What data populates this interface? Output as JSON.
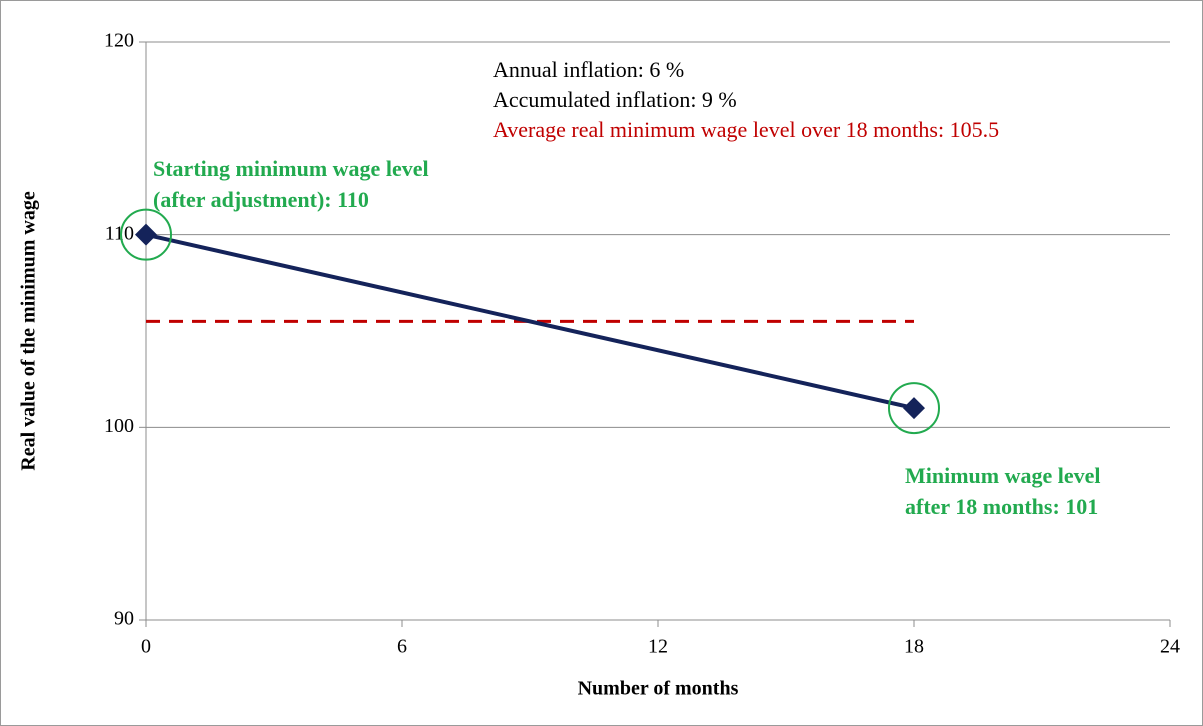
{
  "chart_data": {
    "type": "line",
    "x": [
      0,
      18
    ],
    "values": [
      110,
      101
    ],
    "color": "#14235a",
    "xlabel": "Number of months",
    "ylabel": "Real value of the minimum wage",
    "xlim": [
      0,
      24
    ],
    "xticks": [
      0,
      6,
      12,
      18,
      24
    ],
    "ylim": [
      90,
      120
    ],
    "yticks": [
      90,
      100,
      110,
      120
    ],
    "grid": true,
    "reference_line": {
      "value": 105.5,
      "x": [
        0,
        18
      ],
      "color": "#c00000",
      "style": "dashed"
    },
    "highlight_color": "#22aa4f",
    "annotations": [
      {
        "text": "Annual inflation: 6 %",
        "color": "#000000",
        "bold": false
      },
      {
        "text": "Accumulated inflation: 9 %",
        "color": "#000000",
        "bold": false
      },
      {
        "text": "Average real minimum wage level over 18 months: 105.5",
        "color": "#c00000",
        "bold": false
      },
      {
        "lines": [
          "Starting minimum wage level",
          "(after adjustment): 110"
        ],
        "color": "#22aa4f",
        "bold": true
      },
      {
        "lines": [
          "Minimum wage level",
          "after 18 months: 101"
        ],
        "color": "#22aa4f",
        "bold": true
      }
    ]
  }
}
